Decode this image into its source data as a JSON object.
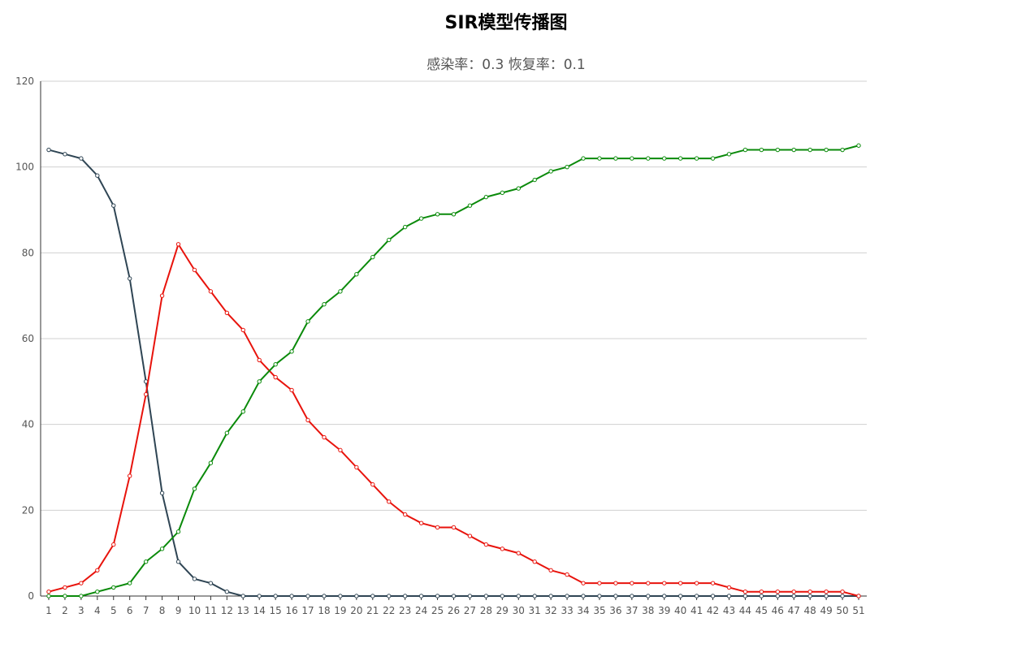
{
  "chart_data": {
    "type": "line",
    "title": "SIR模型传播图",
    "subtitle": "感染率：0.3  恢复率：0.1",
    "xlabel": "",
    "ylabel": "",
    "ylim": [
      0,
      120
    ],
    "yticks": [
      0,
      20,
      40,
      60,
      80,
      100,
      120
    ],
    "grid": true,
    "categories": [
      1,
      2,
      3,
      4,
      5,
      6,
      7,
      8,
      9,
      10,
      11,
      12,
      13,
      14,
      15,
      16,
      17,
      18,
      19,
      20,
      21,
      22,
      23,
      24,
      25,
      26,
      27,
      28,
      29,
      30,
      31,
      32,
      33,
      34,
      35,
      36,
      37,
      38,
      39,
      40,
      41,
      42,
      43,
      44,
      45,
      46,
      47,
      48,
      49,
      50,
      51
    ],
    "series": [
      {
        "color": "#2f4554",
        "values": [
          104,
          103,
          102,
          98,
          91,
          74,
          50,
          24,
          8,
          4,
          3,
          1,
          0,
          0,
          0,
          0,
          0,
          0,
          0,
          0,
          0,
          0,
          0,
          0,
          0,
          0,
          0,
          0,
          0,
          0,
          0,
          0,
          0,
          0,
          0,
          0,
          0,
          0,
          0,
          0,
          0,
          0,
          0,
          0,
          0,
          0,
          0,
          0,
          0,
          0,
          0
        ]
      },
      {
        "color": "#e8130c",
        "values": [
          1,
          2,
          3,
          6,
          12,
          28,
          47,
          70,
          82,
          76,
          71,
          66,
          62,
          55,
          51,
          48,
          41,
          37,
          34,
          30,
          26,
          22,
          19,
          17,
          16,
          16,
          14,
          12,
          11,
          10,
          8,
          6,
          5,
          3,
          3,
          3,
          3,
          3,
          3,
          3,
          3,
          3,
          2,
          1,
          1,
          1,
          1,
          1,
          1,
          1,
          0
        ]
      },
      {
        "color": "#0a8a0a",
        "values": [
          0,
          0,
          0,
          1,
          2,
          3,
          8,
          11,
          15,
          25,
          31,
          38,
          43,
          50,
          54,
          57,
          64,
          68,
          71,
          75,
          79,
          83,
          86,
          88,
          89,
          89,
          91,
          93,
          94,
          95,
          97,
          99,
          100,
          102,
          102,
          102,
          102,
          102,
          102,
          102,
          102,
          102,
          103,
          104,
          104,
          104,
          104,
          104,
          104,
          104,
          105
        ]
      }
    ]
  }
}
